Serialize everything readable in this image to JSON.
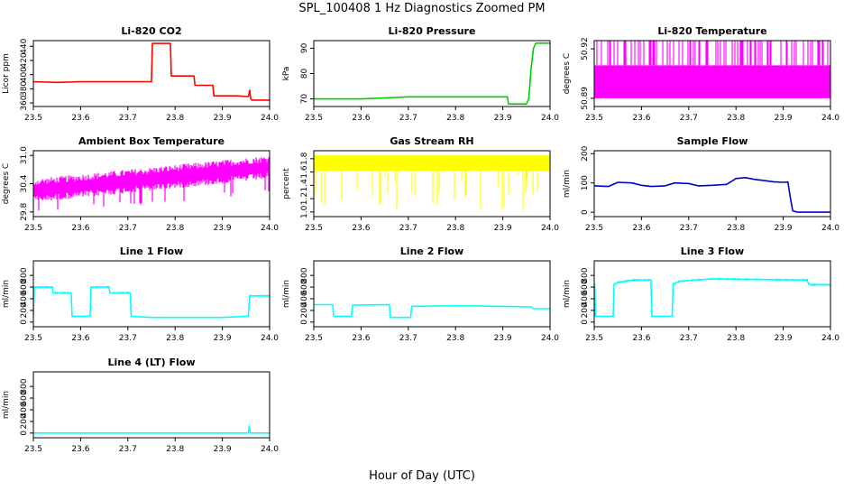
{
  "figure": {
    "title": "SPL_100408  1 Hz Diagnostics Zoomed PM",
    "xlabel": "Hour of Day (UTC)"
  },
  "chart_data": [
    {
      "type": "line",
      "title": "Li-820 CO2",
      "ylabel": "Licor ppm",
      "color": "#ff0000",
      "xlim": [
        23.5,
        24.0
      ],
      "ylim": [
        355,
        448
      ],
      "xticks": [
        23.5,
        23.6,
        23.7,
        23.8,
        23.9,
        24.0
      ],
      "xtick_labels": [
        "23.5",
        "23.6",
        "23.7",
        "23.8",
        "23.9",
        "24.0"
      ],
      "yticks": [
        360,
        380,
        400,
        420,
        440
      ],
      "ytick_labels": [
        "360",
        "380",
        "400",
        "420",
        "440"
      ],
      "series": [
        {
          "x": [
            23.5,
            23.55,
            23.6,
            23.65,
            23.7,
            23.75,
            23.752,
            23.76,
            23.79,
            23.792,
            23.82,
            23.84,
            23.842,
            23.87,
            23.88,
            23.882,
            23.93,
            23.955,
            23.958,
            23.96,
            23.962,
            23.97,
            24.0
          ],
          "y": [
            390,
            389,
            390,
            390,
            390,
            390,
            444,
            444,
            444,
            398,
            398,
            398,
            385,
            385,
            385,
            370,
            370,
            369,
            378,
            366,
            364,
            364,
            364
          ]
        }
      ]
    },
    {
      "type": "line",
      "title": "Li-820 Pressure",
      "ylabel": "kPa",
      "color": "#00cc00",
      "xlim": [
        23.5,
        24.0
      ],
      "ylim": [
        67,
        93
      ],
      "xticks": [
        23.5,
        23.6,
        23.7,
        23.8,
        23.9,
        24.0
      ],
      "xtick_labels": [
        "23.5",
        "23.6",
        "23.7",
        "23.8",
        "23.9",
        "24.0"
      ],
      "yticks": [
        70,
        80,
        90
      ],
      "ytick_labels": [
        "70",
        "80",
        "90"
      ],
      "series": [
        {
          "x": [
            23.5,
            23.6,
            23.65,
            23.7,
            23.75,
            23.8,
            23.85,
            23.91,
            23.912,
            23.95,
            23.955,
            23.96,
            23.965,
            23.97,
            24.0
          ],
          "y": [
            70,
            70,
            70.4,
            70.8,
            70.8,
            70.8,
            70.8,
            70.8,
            68,
            68,
            70,
            82,
            90,
            92,
            92
          ]
        }
      ]
    },
    {
      "type": "line",
      "title": "Li-820 Temperature",
      "ylabel": "degrees C",
      "color": "#ff00ff",
      "xlim": [
        23.5,
        24.0
      ],
      "ylim": [
        50.885,
        50.925
      ],
      "xticks": [
        23.5,
        23.6,
        23.7,
        23.8,
        23.9,
        24.0
      ],
      "xtick_labels": [
        "23.5",
        "23.6",
        "23.7",
        "23.8",
        "23.9",
        "24.0"
      ],
      "yticks": [
        50.89,
        50.92
      ],
      "ytick_labels": [
        "50.89",
        "50.92"
      ],
      "band": {
        "low": 50.89,
        "high": 50.91,
        "spike_high": 50.925
      }
    },
    {
      "type": "line",
      "title": "Ambient Box Temperature",
      "ylabel": "degrees C",
      "color": "#ff00ff",
      "xlim": [
        23.5,
        24.0
      ],
      "ylim": [
        29.7,
        31.1
      ],
      "xticks": [
        23.5,
        23.6,
        23.7,
        23.8,
        23.9,
        24.0
      ],
      "xtick_labels": [
        "23.5",
        "23.6",
        "23.7",
        "23.8",
        "23.9",
        "24.0"
      ],
      "yticks": [
        29.8,
        30.4,
        31.0
      ],
      "ytick_labels": [
        "29.8",
        "30.4",
        "31.0"
      ],
      "trend": {
        "x": [
          23.5,
          24.0
        ],
        "center": [
          30.25,
          30.75
        ],
        "amplitude": 0.18
      }
    },
    {
      "type": "line",
      "title": "Gas Stream RH",
      "ylabel": "percent",
      "color": "#ffff00",
      "xlim": [
        23.5,
        24.0
      ],
      "ylim": [
        0.93,
        1.92
      ],
      "xticks": [
        23.5,
        23.6,
        23.7,
        23.8,
        23.9,
        24.0
      ],
      "xtick_labels": [
        "23.5",
        "23.6",
        "23.7",
        "23.8",
        "23.9",
        "24.0"
      ],
      "yticks": [
        1.0,
        1.2,
        1.4,
        1.6,
        1.8
      ],
      "ytick_labels": [
        "1.0",
        "1.2",
        "1.4",
        "1.6",
        "1.8"
      ],
      "band": {
        "low": 1.62,
        "high": 1.85,
        "dip_min": 0.97
      }
    },
    {
      "type": "line",
      "title": "Sample Flow",
      "ylabel": "ml/min",
      "color": "#0000cc",
      "xlim": [
        23.5,
        24.0
      ],
      "ylim": [
        -15,
        210
      ],
      "xticks": [
        23.5,
        23.6,
        23.7,
        23.8,
        23.9,
        24.0
      ],
      "xtick_labels": [
        "23.5",
        "23.6",
        "23.7",
        "23.8",
        "23.9",
        "24.0"
      ],
      "yticks": [
        0,
        100,
        200
      ],
      "ytick_labels": [
        "0",
        "100",
        "200"
      ],
      "series": [
        {
          "x": [
            23.5,
            23.53,
            23.55,
            23.58,
            23.6,
            23.62,
            23.65,
            23.67,
            23.7,
            23.72,
            23.75,
            23.78,
            23.8,
            23.82,
            23.84,
            23.86,
            23.88,
            23.9,
            23.91,
            23.915,
            23.92,
            23.93,
            24.0
          ],
          "y": [
            90,
            88,
            102,
            100,
            92,
            88,
            90,
            100,
            98,
            90,
            92,
            95,
            115,
            118,
            112,
            108,
            104,
            102,
            103,
            50,
            5,
            0,
            0
          ]
        }
      ]
    },
    {
      "type": "line",
      "title": "Line 1 Flow",
      "ylabel": "ml/min",
      "color": "#00ffff",
      "xlim": [
        23.5,
        24.0
      ],
      "ylim": [
        -80,
        1050
      ],
      "xticks": [
        23.5,
        23.6,
        23.7,
        23.8,
        23.9,
        24.0
      ],
      "xtick_labels": [
        "23.5",
        "23.6",
        "23.7",
        "23.8",
        "23.9",
        "24.0"
      ],
      "yticks": [
        0,
        200,
        400,
        600,
        800
      ],
      "ytick_labels": [
        "0",
        "200",
        "400",
        "600",
        "800"
      ],
      "series": [
        {
          "x": [
            23.5,
            23.502,
            23.54,
            23.542,
            23.58,
            23.582,
            23.62,
            23.622,
            23.66,
            23.662,
            23.705,
            23.707,
            23.75,
            23.9,
            23.955,
            23.958,
            24.0
          ],
          "y": [
            100,
            600,
            600,
            500,
            500,
            100,
            100,
            600,
            600,
            500,
            500,
            100,
            80,
            80,
            100,
            450,
            450
          ]
        }
      ]
    },
    {
      "type": "line",
      "title": "Line 2 Flow",
      "ylabel": "ml/min",
      "color": "#00ffff",
      "xlim": [
        23.5,
        24.0
      ],
      "ylim": [
        -80,
        1050
      ],
      "xticks": [
        23.5,
        23.6,
        23.7,
        23.8,
        23.9,
        24.0
      ],
      "xtick_labels": [
        "23.5",
        "23.6",
        "23.7",
        "23.8",
        "23.9",
        "24.0"
      ],
      "yticks": [
        0,
        200,
        400,
        600,
        800
      ],
      "ytick_labels": [
        "0",
        "200",
        "400",
        "600",
        "800"
      ],
      "series": [
        {
          "x": [
            23.5,
            23.54,
            23.542,
            23.58,
            23.582,
            23.66,
            23.662,
            23.705,
            23.707,
            23.8,
            23.9,
            23.96,
            23.965,
            24.0
          ],
          "y": [
            300,
            300,
            100,
            100,
            290,
            300,
            80,
            80,
            270,
            280,
            270,
            260,
            230,
            230
          ]
        }
      ]
    },
    {
      "type": "line",
      "title": "Line 3 Flow",
      "ylabel": "ml/min",
      "color": "#00ffff",
      "xlim": [
        23.5,
        24.0
      ],
      "ylim": [
        -80,
        1050
      ],
      "xticks": [
        23.5,
        23.6,
        23.7,
        23.8,
        23.9,
        24.0
      ],
      "xtick_labels": [
        "23.5",
        "23.6",
        "23.7",
        "23.8",
        "23.9",
        "24.0"
      ],
      "yticks": [
        0,
        200,
        400,
        600,
        800
      ],
      "ytick_labels": [
        "0",
        "200",
        "400",
        "600",
        "800"
      ],
      "series": [
        {
          "x": [
            23.5,
            23.501,
            23.503,
            23.54,
            23.542,
            23.55,
            23.58,
            23.62,
            23.622,
            23.665,
            23.667,
            23.68,
            23.75,
            23.85,
            23.95,
            23.955,
            24.0
          ],
          "y": [
            100,
            650,
            100,
            100,
            650,
            680,
            720,
            720,
            100,
            100,
            650,
            700,
            740,
            730,
            720,
            640,
            640
          ]
        }
      ]
    },
    {
      "type": "line",
      "title": "Line 4 (LT) Flow",
      "ylabel": "ml/min",
      "color": "#00ffff",
      "xlim": [
        23.5,
        24.0
      ],
      "ylim": [
        -80,
        1050
      ],
      "xticks": [
        23.5,
        23.6,
        23.7,
        23.8,
        23.9,
        24.0
      ],
      "xtick_labels": [
        "23.5",
        "23.6",
        "23.7",
        "23.8",
        "23.9",
        "24.0"
      ],
      "yticks": [
        0,
        200,
        400,
        600,
        800
      ],
      "ytick_labels": [
        "0",
        "200",
        "400",
        "600",
        "800"
      ],
      "series": [
        {
          "x": [
            23.5,
            23.9,
            23.955,
            23.957,
            23.959,
            23.96,
            24.0
          ],
          "y": [
            0,
            0,
            0,
            120,
            0,
            0,
            0
          ]
        }
      ]
    }
  ]
}
